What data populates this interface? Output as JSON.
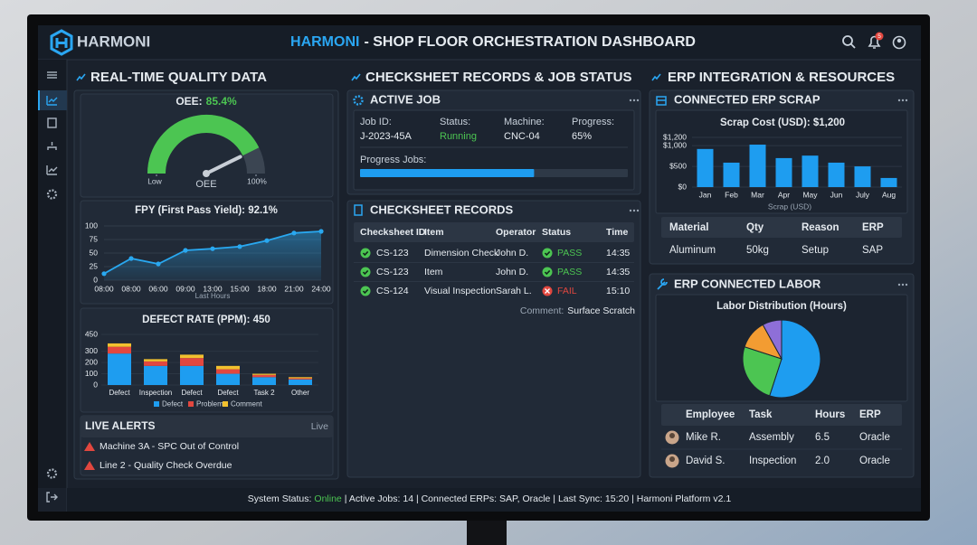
{
  "header": {
    "logo": "HARMONI",
    "title_brand": "HARMONI",
    "title": "- SHOP FLOOR ORCHESTRATION DASHBOARD",
    "notifications": "5"
  },
  "sections": [
    "REAL-TIME QUALITY DATA",
    "CHECKSHEET RECORDS & JOB STATUS",
    "ERP INTEGRATION & RESOURCES"
  ],
  "chart_data": [
    {
      "type": "gauge",
      "title": "OEE:",
      "values": [
        85.4
      ],
      "value_labels": [
        "85.4%"
      ],
      "label": "OEE",
      "ylim": [
        0,
        100
      ],
      "yticks": [
        {
          "value": 0,
          "label": "Low"
        },
        {
          "value": 100,
          "label": "100%"
        }
      ],
      "color": "#4cc552",
      "track_color": "#3b4552"
    },
    {
      "type": "line",
      "title": "FPY (First Pass Yield): 92.1%",
      "categories": [
        "08:00",
        "08:00",
        "06:00",
        "09:00",
        "13:00",
        "15:00",
        "18:00",
        "21:00",
        "24:00"
      ],
      "values": [
        12,
        40,
        30,
        55,
        58,
        62,
        73,
        87,
        90
      ],
      "xlabel": "Last Hours",
      "ylim": [
        0,
        100
      ],
      "yticks": [
        0,
        25,
        50,
        75,
        100
      ],
      "color": "#29a8f0",
      "grid": true
    },
    {
      "type": "stacked_bar",
      "title": "DEFECT RATE (PPM): 450",
      "categories": [
        "Defect",
        "Inspection",
        "Defect",
        "Defect",
        "Task 2",
        "Other"
      ],
      "series": [
        {
          "name": "Defect",
          "color": "#1e9df0",
          "values": [
            280,
            170,
            170,
            100,
            70,
            50
          ]
        },
        {
          "name": "Problems",
          "color": "#e2473f",
          "values": [
            60,
            40,
            70,
            40,
            20,
            10
          ]
        },
        {
          "name": "Comment",
          "color": "#f2c12e",
          "values": [
            30,
            20,
            30,
            30,
            10,
            10
          ]
        }
      ],
      "ylim": [
        0,
        450
      ],
      "yticks": [
        0,
        100,
        200,
        300,
        450
      ],
      "grid": true
    },
    {
      "type": "bar",
      "title": "Scrap Cost (USD): $1,200",
      "categories": [
        "Jan",
        "Feb",
        "Mar",
        "Apr",
        "May",
        "Jun",
        "July",
        "Aug"
      ],
      "values": [
        920,
        590,
        1025,
        700,
        760,
        590,
        500,
        220
      ],
      "xlabel": "Scrap (USD)",
      "ylim": [
        0,
        1200
      ],
      "yticks": [
        {
          "value": 0,
          "label": "$0"
        },
        {
          "value": 500,
          "label": "$500"
        },
        {
          "value": 1000,
          "label": "$1,000"
        },
        {
          "value": 1200,
          "label": "$1,200"
        }
      ],
      "color": "#1e9df0",
      "grid": true
    },
    {
      "type": "pie",
      "title": "Labor Distribution (Hours)",
      "values": [
        55,
        25,
        12,
        8
      ],
      "colors": [
        "#1e9df0",
        "#4cc552",
        "#f39c32",
        "#8e6fd8"
      ]
    }
  ],
  "alerts": {
    "title": "LIVE ALERTS",
    "badge": "Live",
    "items": [
      "Machine 3A - SPC Out of Control",
      "Line 2 - Quality Check Overdue"
    ]
  },
  "active_job": {
    "title": "ACTIVE JOB",
    "fields": [
      {
        "label": "Job ID:",
        "value": "J-2023-45A"
      },
      {
        "label": "Status:",
        "value": "Running"
      },
      {
        "label": "Machine:",
        "value": "CNC-04"
      },
      {
        "label": "Progress:",
        "value": {
          "value": 65,
          "label": "65%"
        }
      }
    ],
    "progress_label": "Progress Jobs:",
    "xlim": [
      0,
      100
    ]
  },
  "checksheet": {
    "title": "CHECKSHEET RECORDS",
    "columns": [
      "Checksheet ID",
      "Item",
      "Operator",
      "Status",
      "Time"
    ],
    "rows": [
      [
        "CS-123",
        "Dimension Check",
        "John D.",
        "PASS",
        "14:35"
      ],
      [
        "CS-123",
        "Item",
        "John D.",
        "PASS",
        "14:35"
      ],
      [
        "CS-124",
        "Visual Inspection",
        "Sarah L.",
        "FAIL",
        "15:10"
      ]
    ],
    "comment_label": "Comment:",
    "comment": "Surface Scratch"
  },
  "erp_scrap": {
    "title": "CONNECTED ERP SCRAP",
    "columns": [
      "Material",
      "Qty",
      "Reason",
      "ERP"
    ],
    "rows": [
      [
        "Aluminum",
        "50kg",
        "Setup",
        "SAP"
      ]
    ]
  },
  "erp_labor": {
    "title": "ERP CONNECTED LABOR",
    "columns": [
      "Employee",
      "Task",
      "Hours",
      "ERP"
    ],
    "rows": [
      [
        "Mike R.",
        "Assembly",
        "6.5",
        "Oracle"
      ],
      [
        "David S.",
        "Inspection",
        "2.0",
        "Oracle"
      ]
    ]
  },
  "footer": {
    "status_label": "System Status:",
    "status": "Online",
    "details": "| Active Jobs: 14 | Connected ERPs: SAP, Oracle | Last Sync: 15:20 | Harmoni Platform v2.1"
  }
}
